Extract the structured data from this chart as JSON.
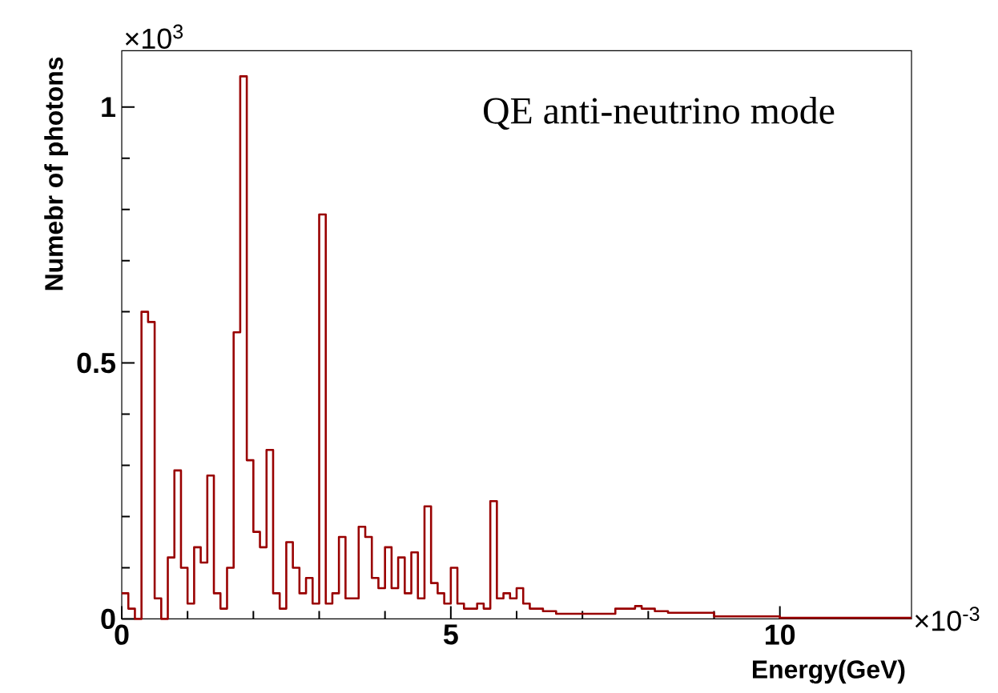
{
  "chart_data": {
    "type": "histogram",
    "title": "QE anti-neutrino mode",
    "xlabel": "Energy(GeV)",
    "ylabel": "Numebr of photons",
    "annotations": [
      "×10$^{3}$",
      "×10$^{-3}$"
    ],
    "color": "#990000",
    "xlim": [
      0,
      12
    ],
    "ylim": [
      0,
      1.11
    ],
    "xticks": [
      0,
      5,
      10
    ],
    "yticks": [
      0,
      0.5,
      1
    ],
    "grid": false,
    "bins": [
      0,
      0.1,
      0.2,
      0.3,
      0.4,
      0.5,
      0.6,
      0.7,
      0.8,
      0.9,
      1.0,
      1.1,
      1.2,
      1.3,
      1.4,
      1.5,
      1.6,
      1.7,
      1.8,
      1.9,
      2.0,
      2.1,
      2.2,
      2.3,
      2.4,
      2.5,
      2.6,
      2.7,
      2.8,
      2.9,
      3.0,
      3.1,
      3.2,
      3.3,
      3.4,
      3.5,
      3.6,
      3.7,
      3.8,
      3.9,
      4.0,
      4.1,
      4.2,
      4.3,
      4.4,
      4.5,
      4.6,
      4.7,
      4.8,
      4.9,
      5.0,
      5.1,
      5.2,
      5.3,
      5.4,
      5.5,
      5.6,
      5.7,
      5.8,
      5.9,
      6.0,
      6.1,
      6.2,
      6.3,
      6.4,
      6.5,
      6.6,
      6.7,
      6.8,
      6.9,
      7.0,
      7.1,
      7.2,
      7.3,
      7.4,
      7.5,
      7.6,
      7.7,
      7.8,
      7.9,
      8.0,
      8.1,
      8.2,
      8.3,
      8.4,
      8.5,
      8.6,
      8.7,
      8.8,
      8.9,
      9.0,
      9.1,
      9.2,
      9.3,
      9.4,
      9.5,
      9.6,
      9.7,
      9.8,
      9.9,
      10.0,
      10.1,
      10.2,
      10.3,
      10.4,
      10.5,
      10.6,
      10.7,
      10.8,
      10.9,
      11.0,
      11.1,
      11.2,
      11.3,
      11.4,
      11.5,
      11.6,
      11.7,
      11.8,
      11.9,
      12.0
    ],
    "values": [
      0.05,
      0.02,
      0.0,
      0.6,
      0.58,
      0.04,
      0.0,
      0.12,
      0.29,
      0.1,
      0.03,
      0.14,
      0.11,
      0.28,
      0.05,
      0.02,
      0.1,
      0.56,
      1.06,
      0.31,
      0.17,
      0.14,
      0.33,
      0.05,
      0.02,
      0.15,
      0.1,
      0.05,
      0.08,
      0.03,
      0.79,
      0.03,
      0.05,
      0.16,
      0.04,
      0.04,
      0.18,
      0.16,
      0.08,
      0.06,
      0.14,
      0.06,
      0.12,
      0.05,
      0.13,
      0.04,
      0.22,
      0.07,
      0.05,
      0.03,
      0.1,
      0.03,
      0.02,
      0.02,
      0.03,
      0.02,
      0.23,
      0.04,
      0.05,
      0.04,
      0.06,
      0.03,
      0.02,
      0.02,
      0.015,
      0.015,
      0.01,
      0.01,
      0.01,
      0.01,
      0.01,
      0.01,
      0.01,
      0.01,
      0.01,
      0.02,
      0.02,
      0.02,
      0.025,
      0.02,
      0.02,
      0.015,
      0.015,
      0.012,
      0.012,
      0.012,
      0.012,
      0.012,
      0.012,
      0.012,
      0.005,
      0.005,
      0.005,
      0.005,
      0.005,
      0.005,
      0.005,
      0.005,
      0.005,
      0.005,
      0.002,
      0.002,
      0.002,
      0.002,
      0.002,
      0.002,
      0.002,
      0.002,
      0.002,
      0.002,
      0.002,
      0.002,
      0.002,
      0.002,
      0.002,
      0.002,
      0.002,
      0.002,
      0.002,
      0.002
    ]
  }
}
